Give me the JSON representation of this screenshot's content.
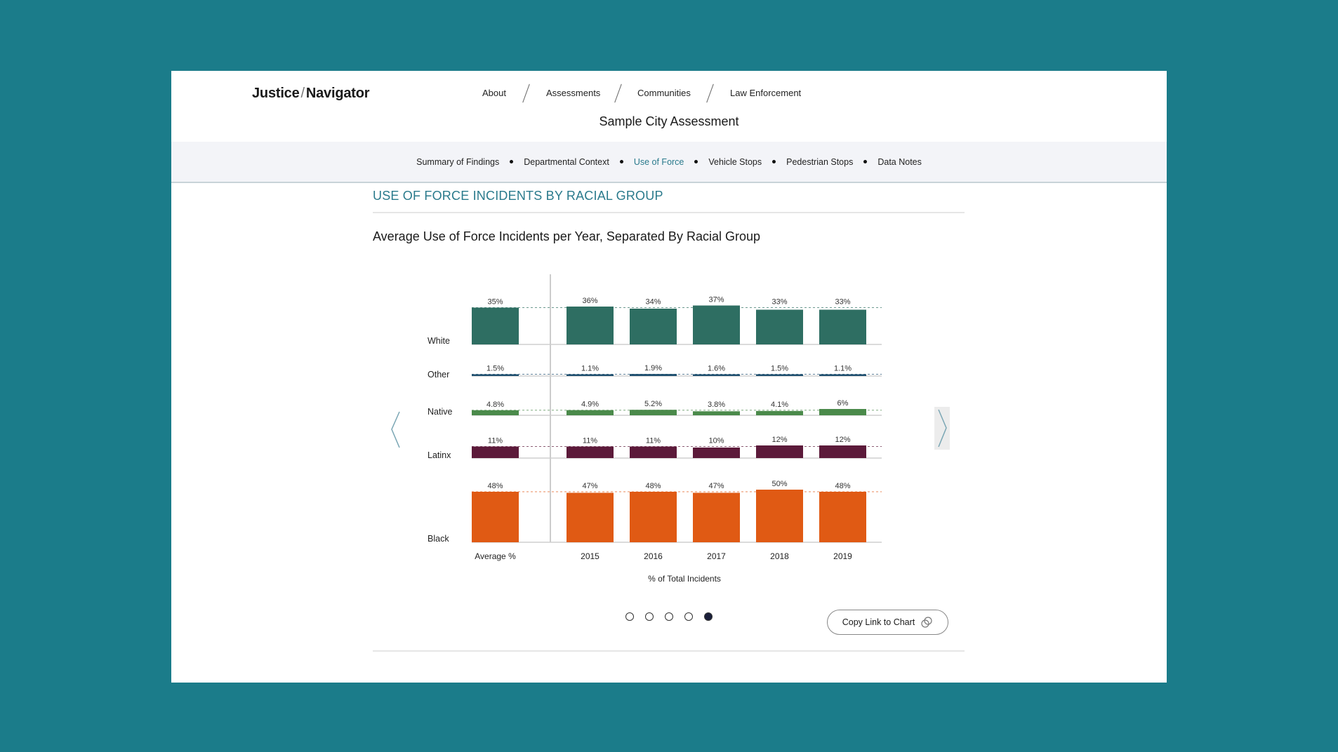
{
  "header": {
    "logo_left": "Justice",
    "logo_sep": "/",
    "logo_right": "Navigator",
    "nav": [
      "About",
      "Assessments",
      "Communities",
      "Law Enforcement"
    ],
    "page_title": "Sample City Assessment"
  },
  "subnav": {
    "items": [
      "Summary of Findings",
      "Departmental Context",
      "Use of Force",
      "Vehicle Stops",
      "Pedestrian Stops",
      "Data Notes"
    ],
    "active": "Use of Force"
  },
  "section": {
    "heading": "USE OF FORCE INCIDENTS BY RACIAL GROUP",
    "chart_title": "Average Use of Force Incidents per Year, Separated By Racial Group"
  },
  "carousel": {
    "slides": 5,
    "active_slide": 5,
    "copy_label": "Copy Link to Chart",
    "prev_icon": "chevron-left-icon",
    "next_icon": "chevron-right-icon",
    "copy_icon": "link-icon"
  },
  "chart_data": {
    "type": "bar",
    "title": "Average Use of Force Incidents per Year, Separated By Racial Group",
    "xlabel": "% of Total Incidents",
    "categories": [
      "Average %",
      "2015",
      "2016",
      "2017",
      "2018",
      "2019"
    ],
    "series": [
      {
        "name": "White",
        "color": "#2e6e62",
        "values": [
          35,
          36,
          34,
          37,
          33,
          33
        ],
        "labels": [
          "35%",
          "36%",
          "34%",
          "37%",
          "33%",
          "33%"
        ]
      },
      {
        "name": "Other",
        "color": "#1d4e6e",
        "values": [
          1.5,
          1.1,
          1.9,
          1.6,
          1.5,
          1.1
        ],
        "labels": [
          "1.5%",
          "1.1%",
          "1.9%",
          "1.6%",
          "1.5%",
          "1.1%"
        ]
      },
      {
        "name": "Native",
        "color": "#4a8a4a",
        "values": [
          4.8,
          4.9,
          5.2,
          3.8,
          4.1,
          6
        ],
        "labels": [
          "4.8%",
          "4.9%",
          "5.2%",
          "3.8%",
          "4.1%",
          "6%"
        ]
      },
      {
        "name": "Latinx",
        "color": "#5c1a3a",
        "values": [
          11,
          11,
          11,
          10,
          12,
          12
        ],
        "labels": [
          "11%",
          "11%",
          "11%",
          "10%",
          "12%",
          "12%"
        ]
      },
      {
        "name": "Black",
        "color": "#e05a14",
        "values": [
          48,
          47,
          48,
          47,
          50,
          48
        ],
        "labels": [
          "48%",
          "47%",
          "48%",
          "47%",
          "50%",
          "48%"
        ]
      }
    ],
    "average_reference_lines": true,
    "grid": false
  }
}
